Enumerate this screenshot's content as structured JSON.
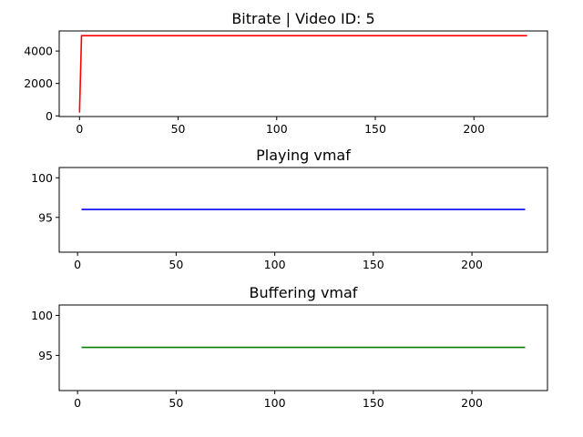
{
  "chart_data": [
    {
      "type": "line",
      "title": "Bitrate | Video ID: 5",
      "xlabel": "",
      "ylabel": "",
      "xlim": [
        -10.3,
        237.3
      ],
      "ylim": [
        -40,
        5240
      ],
      "xticks": [
        0,
        50,
        100,
        150,
        200
      ],
      "yticks": [
        0,
        2000,
        4000
      ],
      "grid": false,
      "color": "#ff0000",
      "series": [
        {
          "x": [
            0,
            1,
            2,
            227
          ],
          "y": [
            200,
            4950,
            4950,
            4950
          ]
        }
      ]
    },
    {
      "type": "line",
      "title": "Playing vmaf",
      "xlabel": "",
      "ylabel": "",
      "xlim": [
        -9.3,
        238.3
      ],
      "ylim": [
        90.6,
        101.3
      ],
      "xticks": [
        0,
        50,
        100,
        150,
        200
      ],
      "yticks": [
        95,
        100
      ],
      "grid": false,
      "color": "#0000ff",
      "series": [
        {
          "x": [
            2,
            227
          ],
          "y": [
            96,
            96
          ]
        }
      ]
    },
    {
      "type": "line",
      "title": "Buffering vmaf",
      "xlabel": "",
      "ylabel": "",
      "xlim": [
        -9.3,
        238.3
      ],
      "ylim": [
        90.6,
        101.3
      ],
      "xticks": [
        0,
        50,
        100,
        150,
        200
      ],
      "yticks": [
        95,
        100
      ],
      "grid": false,
      "color": "#008000",
      "series": [
        {
          "x": [
            2,
            227
          ],
          "y": [
            96,
            96
          ]
        }
      ]
    }
  ]
}
